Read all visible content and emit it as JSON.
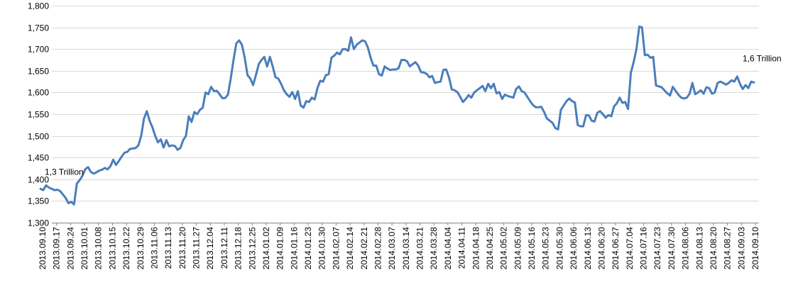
{
  "chart_data": {
    "type": "line",
    "title": "",
    "xlabel": "",
    "ylabel": "",
    "ylim": [
      1300,
      1800
    ],
    "yticks": [
      1300,
      1350,
      1400,
      1450,
      1500,
      1550,
      1600,
      1650,
      1700,
      1750,
      1800
    ],
    "ytick_labels": [
      "1,300",
      "1,350",
      "1,400",
      "1,450",
      "1,500",
      "1,550",
      "1,600",
      "1,650",
      "1,700",
      "1,750",
      "1,800"
    ],
    "grid": "horizontal",
    "line_color": "#4a7ebb",
    "xtick_labels": [
      "2013.09.10",
      "2013.09.17",
      "2013.09.24",
      "2013.10.01",
      "2013.10.08",
      "2013.10.15",
      "2013.10.22",
      "2013.10.29",
      "2013.11.06",
      "2013.11.13",
      "2013.11.20",
      "2013.11.27",
      "2013.12.04",
      "2013.12.11",
      "2013.12.18",
      "2013.12.25",
      "2014.01.02",
      "2014.01.09",
      "2014.01.16",
      "2014.01.23",
      "2014.01.30",
      "2014.02.07",
      "2014.02.14",
      "2014.02.21",
      "2014.02.28",
      "2014.03.07",
      "2014.03.14",
      "2014.03.21",
      "2014.03.28",
      "2014.04.04",
      "2014.04.11",
      "2014.04.18",
      "2014.04.25",
      "2014.05.02",
      "2014.05.09",
      "2014.05.16",
      "2014.05.23",
      "2014.05.30",
      "2014.06.06",
      "2014.06.13",
      "2014.06.20",
      "2014.06.27",
      "2014.07.04",
      "2014.07.16",
      "2014.07.23",
      "2014.07.30",
      "2014.08.06",
      "2014.08.13",
      "2014.08.20",
      "2014.08.27",
      "2014.09.03",
      "2014.09.10"
    ],
    "annotations": [
      {
        "text": "1,3 Trillion",
        "at": "start"
      },
      {
        "text": "1,6 Trillion",
        "at": "end"
      }
    ],
    "series": [
      {
        "values": [
          1378,
          1375,
          1386,
          1381,
          1378,
          1375,
          1376,
          1373,
          1365,
          1357,
          1345,
          1348,
          1342,
          1390,
          1398,
          1408,
          1423,
          1428,
          1417,
          1413,
          1416,
          1420,
          1422,
          1426,
          1423,
          1430,
          1445,
          1433,
          1442,
          1452,
          1461,
          1463,
          1470,
          1471,
          1472,
          1478,
          1500,
          1540,
          1557,
          1535,
          1520,
          1500,
          1485,
          1492,
          1473,
          1490,
          1476,
          1478,
          1477,
          1468,
          1472,
          1490,
          1500,
          1545,
          1532,
          1555,
          1550,
          1560,
          1565,
          1600,
          1596,
          1613,
          1603,
          1604,
          1596,
          1587,
          1587,
          1595,
          1632,
          1675,
          1713,
          1720,
          1710,
          1680,
          1640,
          1632,
          1617,
          1640,
          1665,
          1675,
          1682,
          1660,
          1682,
          1660,
          1635,
          1632,
          1620,
          1605,
          1596,
          1590,
          1601,
          1585,
          1603,
          1570,
          1565,
          1580,
          1578,
          1588,
          1584,
          1610,
          1627,
          1625,
          1640,
          1642,
          1680,
          1685,
          1692,
          1688,
          1700,
          1700,
          1696,
          1727,
          1700,
          1710,
          1715,
          1720,
          1718,
          1704,
          1680,
          1662,
          1662,
          1642,
          1639,
          1660,
          1655,
          1652,
          1653,
          1653,
          1656,
          1675,
          1675,
          1672,
          1660,
          1665,
          1670,
          1662,
          1647,
          1646,
          1643,
          1635,
          1638,
          1622,
          1624,
          1625,
          1652,
          1653,
          1635,
          1607,
          1605,
          1601,
          1590,
          1578,
          1585,
          1594,
          1588,
          1600,
          1605,
          1610,
          1615,
          1603,
          1620,
          1610,
          1620,
          1598,
          1601,
          1585,
          1595,
          1592,
          1590,
          1588,
          1608,
          1614,
          1603,
          1600,
          1590,
          1580,
          1571,
          1566,
          1566,
          1567,
          1555,
          1540,
          1535,
          1530,
          1518,
          1515,
          1560,
          1570,
          1580,
          1586,
          1580,
          1577,
          1525,
          1522,
          1522,
          1548,
          1547,
          1535,
          1533,
          1553,
          1557,
          1550,
          1542,
          1548,
          1545,
          1568,
          1575,
          1588,
          1576,
          1578,
          1562,
          1645,
          1670,
          1700,
          1752,
          1750,
          1686,
          1687,
          1680,
          1682,
          1616,
          1614,
          1612,
          1605,
          1598,
          1593,
          1613,
          1604,
          1595,
          1588,
          1586,
          1588,
          1597,
          1622,
          1596,
          1600,
          1605,
          1597,
          1612,
          1610,
          1597,
          1600,
          1622,
          1625,
          1622,
          1618,
          1622,
          1628,
          1625,
          1637,
          1620,
          1608,
          1617,
          1610,
          1625,
          1623
        ]
      }
    ]
  }
}
